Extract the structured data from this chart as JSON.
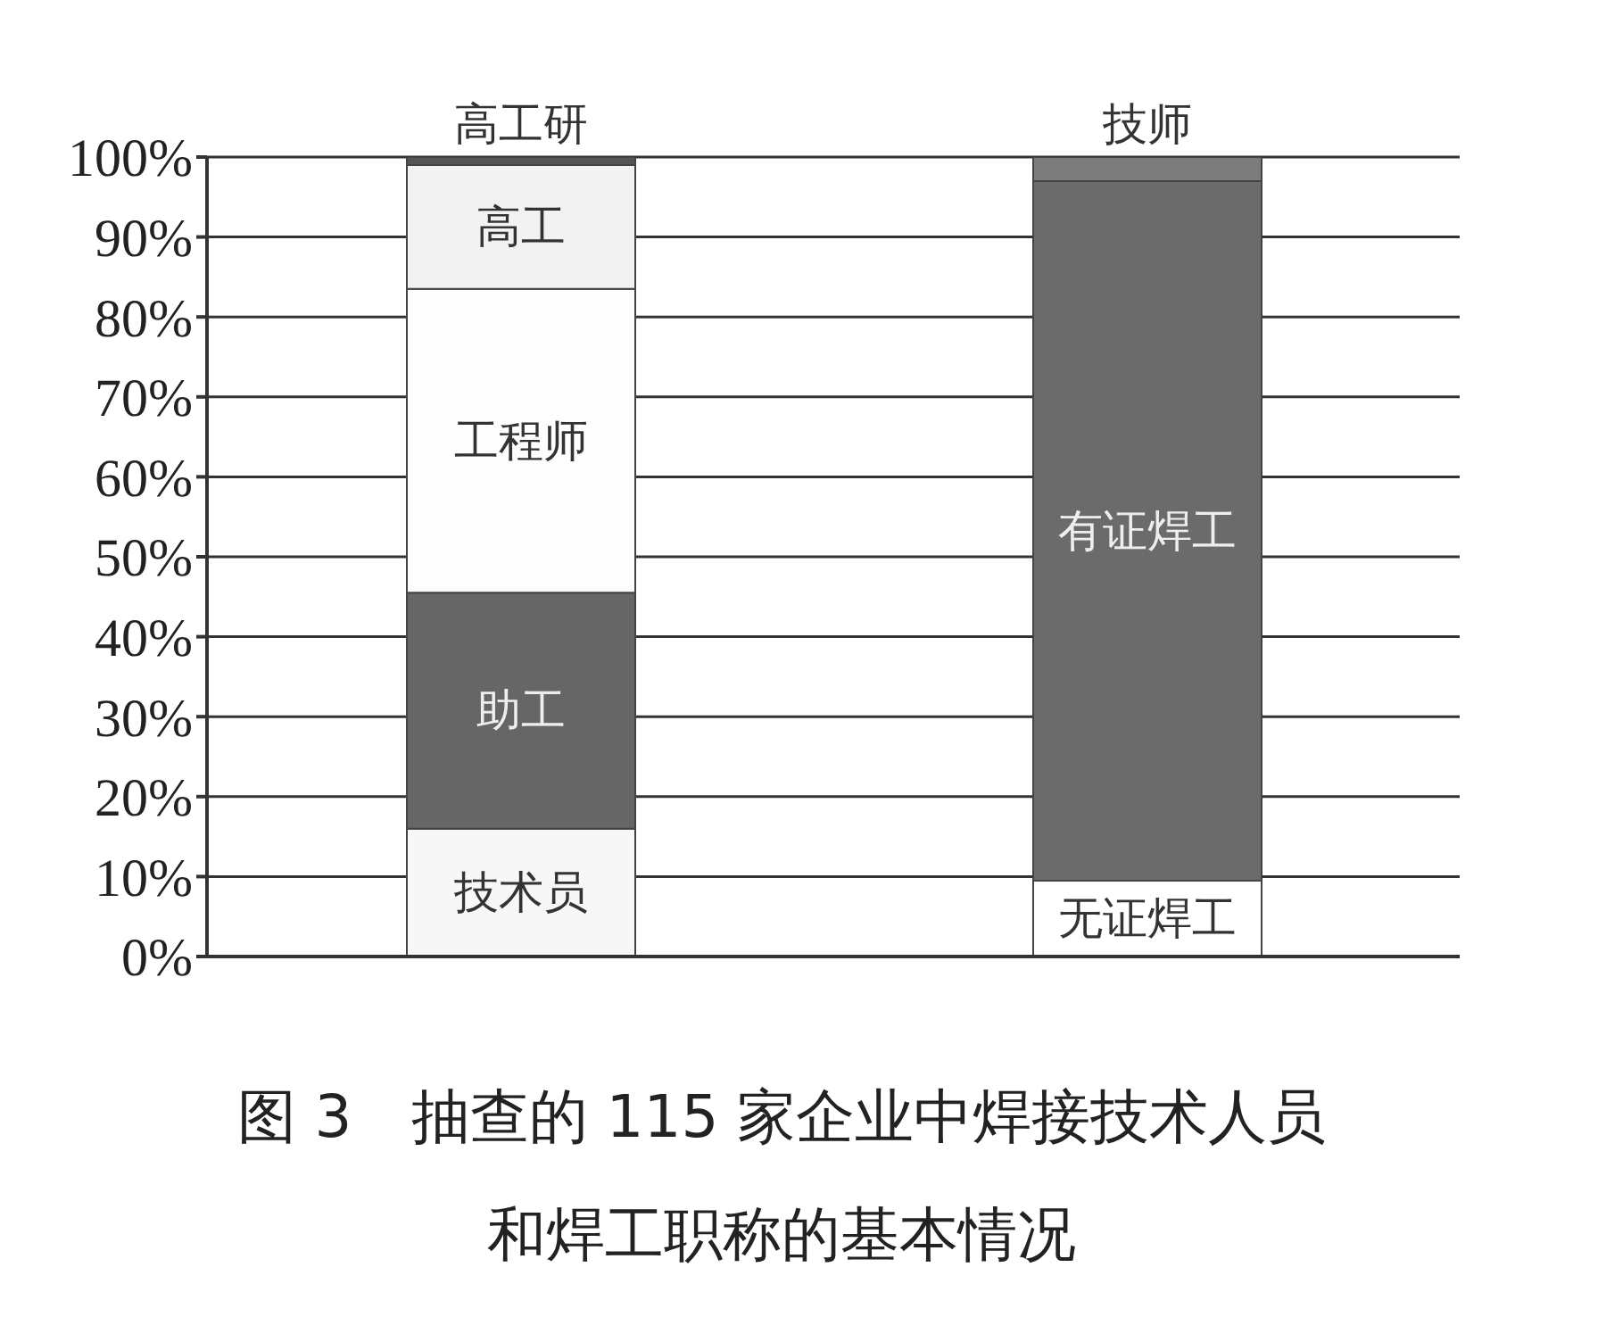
{
  "chart_data": {
    "type": "bar",
    "title": "图 3　抽查的 115 家企业中焊接技术人员和焊工职称的基本情况",
    "categories": [
      null,
      null
    ],
    "stacked": true,
    "series": [
      {
        "name": "技术员",
        "color": "#f7f7f7",
        "values": [
          16,
          null
        ]
      },
      {
        "name": "助工",
        "color": "#666666",
        "values": [
          29.5,
          null
        ]
      },
      {
        "name": "工程师",
        "color": "#fdfdfd",
        "values": [
          38,
          null
        ]
      },
      {
        "name": "高工",
        "color": "#f2f2f2",
        "values": [
          15.5,
          null
        ]
      },
      {
        "name": "高工研",
        "color": "#555555",
        "values": [
          1,
          null
        ]
      },
      {
        "name": "无证焊工",
        "color": "#ffffff",
        "values": [
          null,
          9.5
        ]
      },
      {
        "name": "有证焊工",
        "color": "#6b6b6b",
        "values": [
          null,
          87.5
        ]
      },
      {
        "name": "技师",
        "color": "#7c7c7c",
        "values": [
          null,
          3
        ]
      }
    ],
    "ylim": [
      0,
      100
    ],
    "yticks": [
      {
        "value": 0,
        "label": "0%"
      },
      {
        "value": 10,
        "label": "10%"
      },
      {
        "value": 20,
        "label": "20%"
      },
      {
        "value": 30,
        "label": "30%"
      },
      {
        "value": 40,
        "label": "40%"
      },
      {
        "value": 50,
        "label": "50%"
      },
      {
        "value": 60,
        "label": "60%"
      },
      {
        "value": 70,
        "label": "70%"
      },
      {
        "value": 80,
        "label": "80%"
      },
      {
        "value": 90,
        "label": "90%"
      },
      {
        "value": 100,
        "label": "100%"
      }
    ],
    "grid": "y",
    "tick_labels": "y"
  }
}
